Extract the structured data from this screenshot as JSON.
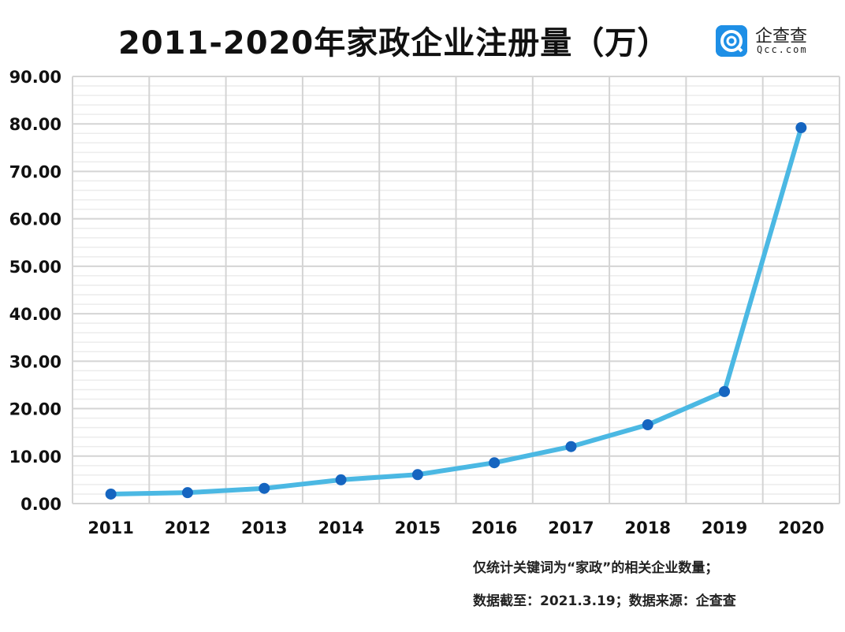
{
  "chart_data": {
    "type": "line",
    "title": "2011-2020年家政企业注册量（万）",
    "categories": [
      "2011",
      "2012",
      "2013",
      "2014",
      "2015",
      "2016",
      "2017",
      "2018",
      "2019",
      "2020"
    ],
    "values": [
      2.0,
      2.3,
      3.2,
      5.0,
      6.1,
      8.6,
      12.0,
      16.6,
      23.6,
      79.2
    ],
    "ylim": [
      0,
      90
    ],
    "yticks": [
      "0.00",
      "10.00",
      "20.00",
      "30.00",
      "40.00",
      "50.00",
      "60.00",
      "70.00",
      "80.00",
      "90.00"
    ],
    "grid": true,
    "line_color": "#4bb8e3",
    "marker_color": "#1565c0"
  },
  "logo": {
    "cn": "企查查",
    "en": "Qcc.com",
    "color": "#1e8fe6"
  },
  "notes": {
    "line1": "仅统计关键词为“家政”的相关企业数量；",
    "line2": "数据截至：2021.3.19；数据来源：企查查"
  }
}
